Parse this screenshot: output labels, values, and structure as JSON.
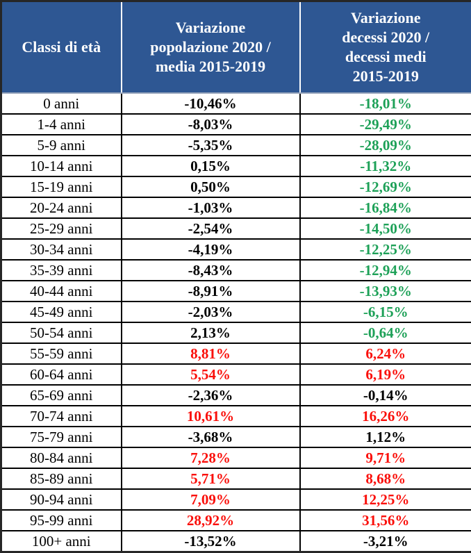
{
  "colors": {
    "header_bg": "#2e5793",
    "header_text": "#ffffff",
    "black": "#000000",
    "red": "#fa0f0a",
    "green": "#1ea158"
  },
  "chart_data": {
    "type": "table",
    "columns": [
      "Classi di età",
      "Variazione\npopolazione 2020 /\nmedia 2015-2019",
      "Variazione\ndecessi 2020 /\ndecessi medi\n2015-2019"
    ],
    "rows": [
      {
        "age": "0 anni",
        "pop": "-10,46%",
        "pop_color": "black",
        "deaths": "-18,01%",
        "deaths_color": "green"
      },
      {
        "age": "1-4 anni",
        "pop": "-8,03%",
        "pop_color": "black",
        "deaths": "-29,49%",
        "deaths_color": "green"
      },
      {
        "age": "5-9 anni",
        "pop": "-5,35%",
        "pop_color": "black",
        "deaths": "-28,09%",
        "deaths_color": "green"
      },
      {
        "age": "10-14 anni",
        "pop": "0,15%",
        "pop_color": "black",
        "deaths": "-11,32%",
        "deaths_color": "green"
      },
      {
        "age": "15-19 anni",
        "pop": "0,50%",
        "pop_color": "black",
        "deaths": "-12,69%",
        "deaths_color": "green"
      },
      {
        "age": "20-24 anni",
        "pop": "-1,03%",
        "pop_color": "black",
        "deaths": "-16,84%",
        "deaths_color": "green"
      },
      {
        "age": "25-29 anni",
        "pop": "-2,54%",
        "pop_color": "black",
        "deaths": "-14,50%",
        "deaths_color": "green"
      },
      {
        "age": "30-34 anni",
        "pop": "-4,19%",
        "pop_color": "black",
        "deaths": "-12,25%",
        "deaths_color": "green"
      },
      {
        "age": "35-39 anni",
        "pop": "-8,43%",
        "pop_color": "black",
        "deaths": "-12,94%",
        "deaths_color": "green"
      },
      {
        "age": "40-44 anni",
        "pop": "-8,91%",
        "pop_color": "black",
        "deaths": "-13,93%",
        "deaths_color": "green"
      },
      {
        "age": "45-49 anni",
        "pop": "-2,03%",
        "pop_color": "black",
        "deaths": "-6,15%",
        "deaths_color": "green"
      },
      {
        "age": "50-54 anni",
        "pop": "2,13%",
        "pop_color": "black",
        "deaths": "-0,64%",
        "deaths_color": "green"
      },
      {
        "age": "55-59 anni",
        "pop": "8,81%",
        "pop_color": "red",
        "deaths": "6,24%",
        "deaths_color": "red"
      },
      {
        "age": "60-64 anni",
        "pop": "5,54%",
        "pop_color": "red",
        "deaths": "6,19%",
        "deaths_color": "red"
      },
      {
        "age": "65-69 anni",
        "pop": "-2,36%",
        "pop_color": "black",
        "deaths": "-0,14%",
        "deaths_color": "black"
      },
      {
        "age": "70-74 anni",
        "pop": "10,61%",
        "pop_color": "red",
        "deaths": "16,26%",
        "deaths_color": "red"
      },
      {
        "age": "75-79 anni",
        "pop": "-3,68%",
        "pop_color": "black",
        "deaths": "1,12%",
        "deaths_color": "black"
      },
      {
        "age": "80-84 anni",
        "pop": "7,28%",
        "pop_color": "red",
        "deaths": "9,71%",
        "deaths_color": "red"
      },
      {
        "age": "85-89 anni",
        "pop": "5,71%",
        "pop_color": "red",
        "deaths": "8,68%",
        "deaths_color": "red"
      },
      {
        "age": "90-94 anni",
        "pop": "7,09%",
        "pop_color": "red",
        "deaths": "12,25%",
        "deaths_color": "red"
      },
      {
        "age": "95-99 anni",
        "pop": "28,92%",
        "pop_color": "red",
        "deaths": "31,56%",
        "deaths_color": "red"
      },
      {
        "age": "100+ anni",
        "pop": "-13,52%",
        "pop_color": "black",
        "deaths": "-3,21%",
        "deaths_color": "black"
      }
    ]
  }
}
